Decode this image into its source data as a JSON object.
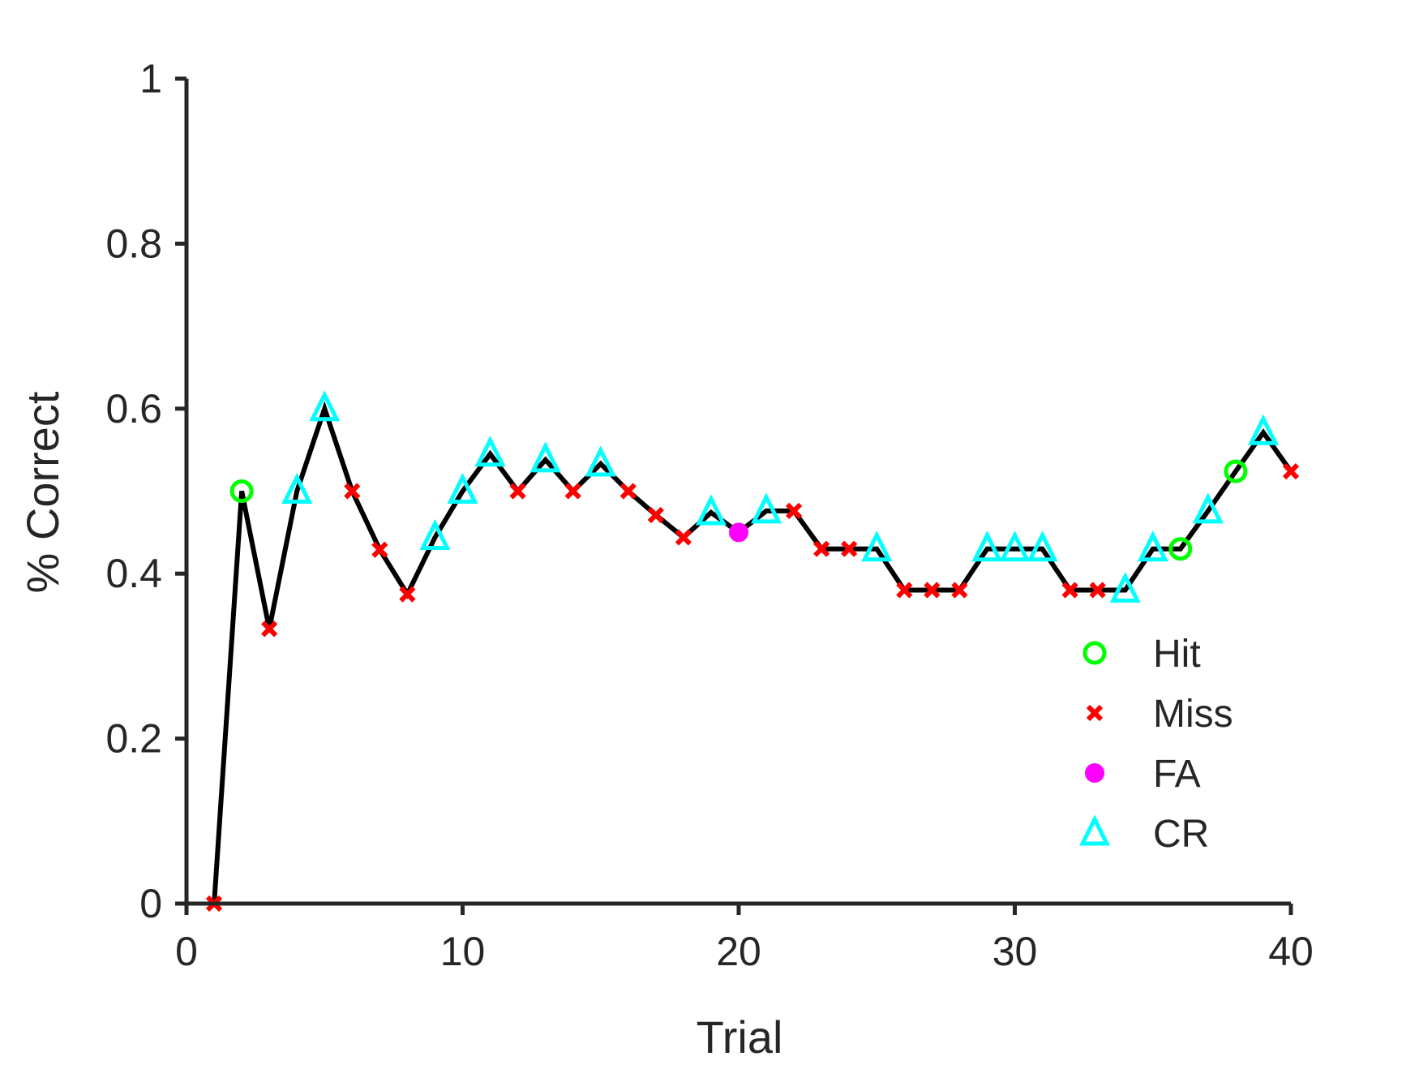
{
  "chart_data": {
    "type": "line",
    "xlabel": "Trial",
    "ylabel": "% Correct",
    "xlim": [
      0,
      40
    ],
    "ylim": [
      0,
      1
    ],
    "xticks": [
      0,
      10,
      20,
      30,
      40
    ],
    "xtick_labels": [
      "0",
      "10",
      "20",
      "30",
      "40"
    ],
    "yticks": [
      0,
      0.2,
      0.4,
      0.6,
      0.8,
      1
    ],
    "ytick_labels": [
      "0",
      "0.2",
      "0.4",
      "0.6",
      "0.8",
      "1"
    ],
    "grid": false,
    "legend_position": "bottom-right",
    "line_color": "#000000",
    "x": [
      1,
      2,
      3,
      4,
      5,
      6,
      7,
      8,
      9,
      10,
      11,
      12,
      13,
      14,
      15,
      16,
      17,
      18,
      19,
      20,
      21,
      22,
      23,
      24,
      25,
      26,
      27,
      28,
      29,
      30,
      31,
      32,
      33,
      34,
      35,
      36,
      37,
      38,
      39,
      40
    ],
    "y": [
      0,
      0.5,
      0.333,
      0.5,
      0.6,
      0.5,
      0.429,
      0.375,
      0.444,
      0.5,
      0.545,
      0.5,
      0.538,
      0.5,
      0.533,
      0.5,
      0.471,
      0.444,
      0.474,
      0.45,
      0.476,
      0.476,
      0.43,
      0.43,
      0.43,
      0.38,
      0.38,
      0.38,
      0.43,
      0.43,
      0.43,
      0.38,
      0.38,
      0.38,
      0.43,
      0.43,
      0.476,
      0.524,
      0.571,
      0.524
    ],
    "outcome": [
      "Miss",
      "Hit",
      "Miss",
      "CR",
      "CR",
      "Miss",
      "Miss",
      "Miss",
      "CR",
      "CR",
      "CR",
      "Miss",
      "CR",
      "Miss",
      "CR",
      "Miss",
      "Miss",
      "Miss",
      "CR",
      "FA",
      "CR",
      "Miss",
      "Miss",
      "Miss",
      "CR",
      "Miss",
      "Miss",
      "Miss",
      "CR",
      "CR",
      "CR",
      "Miss",
      "Miss",
      "CR",
      "CR",
      "Hit",
      "CR",
      "Hit",
      "CR",
      "Miss"
    ],
    "series": [
      {
        "name": "Hit",
        "marker": "circle",
        "color": "#00ff00"
      },
      {
        "name": "Miss",
        "marker": "x",
        "color": "#ff0000"
      },
      {
        "name": "FA",
        "marker": "dot",
        "color": "#ff00ff"
      },
      {
        "name": "CR",
        "marker": "triangle",
        "color": "#00ffff"
      }
    ]
  }
}
